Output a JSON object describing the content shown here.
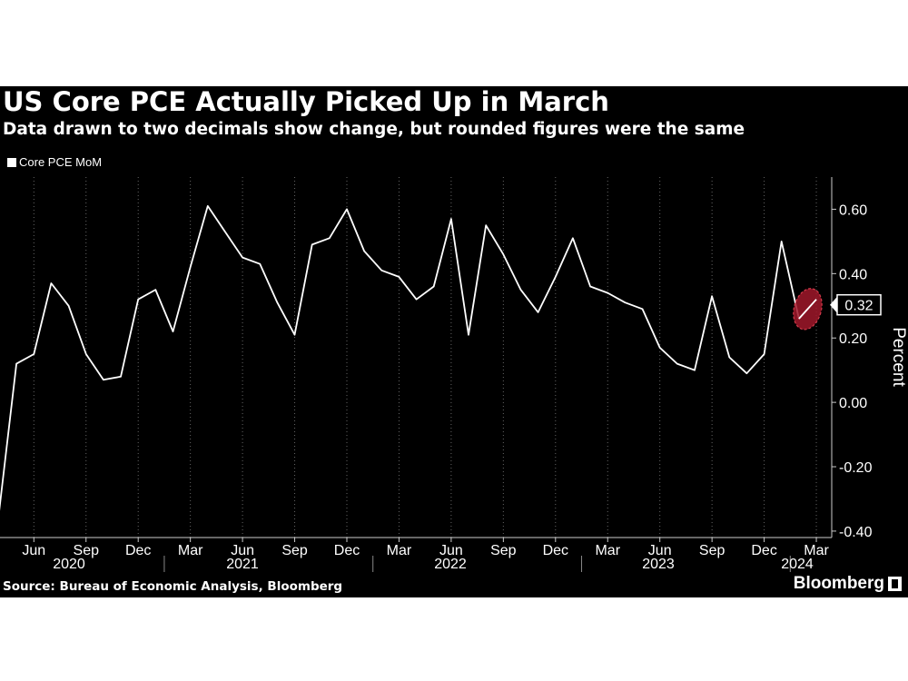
{
  "title": "US Core PCE Actually Picked Up in March",
  "subtitle": "Data drawn to two decimals show change, but rounded figures were the same",
  "source": "Source: Bureau of Economic Analysis, Bloomberg",
  "brand": "Bloomberg",
  "colors": {
    "background": "#000000",
    "line": "#ffffff",
    "highlight": "#a0182a",
    "grid": "#666666"
  },
  "chart_data": {
    "type": "line",
    "title": "US Core PCE Actually Picked Up in March",
    "subtitle": "Data drawn to two decimals show change, but rounded figures were the same",
    "ylabel": "Percent",
    "ylim": [
      -0.42,
      0.7
    ],
    "yticks": [
      -0.4,
      -0.2,
      0.0,
      0.2,
      0.4,
      0.6
    ],
    "ytick_labels": [
      "-0.40",
      "-0.20",
      "0.00",
      "0.20",
      "0.40",
      "0.60"
    ],
    "y_axis_position": "right",
    "grid": "vertical dotted at month ticks",
    "legend_position": "top-left",
    "x_month_labels": [
      "Jun",
      "Sep",
      "Dec",
      "Mar",
      "Jun",
      "Sep",
      "Dec",
      "Mar",
      "Jun",
      "Sep",
      "Dec",
      "Mar",
      "Jun",
      "Sep",
      "Dec",
      "Mar"
    ],
    "x_year_labels": [
      "2020",
      "2021",
      "2022",
      "2023",
      "2024"
    ],
    "series": [
      {
        "name": "Core PCE MoM",
        "start": "2020-04",
        "values": [
          -0.34,
          0.12,
          0.15,
          0.37,
          0.3,
          0.15,
          0.07,
          0.08,
          0.32,
          0.35,
          0.22,
          0.42,
          0.61,
          0.53,
          0.45,
          0.43,
          0.31,
          0.21,
          0.49,
          0.51,
          0.6,
          0.47,
          0.41,
          0.39,
          0.32,
          0.36,
          0.57,
          0.21,
          0.55,
          0.46,
          0.35,
          0.28,
          0.39,
          0.51,
          0.36,
          0.34,
          0.31,
          0.29,
          0.17,
          0.12,
          0.1,
          0.33,
          0.14,
          0.09,
          0.15,
          0.5,
          0.26,
          0.32
        ]
      }
    ],
    "annotation": {
      "label": "0.32",
      "highlight": "last two points (Feb-Mar 2024)"
    }
  }
}
